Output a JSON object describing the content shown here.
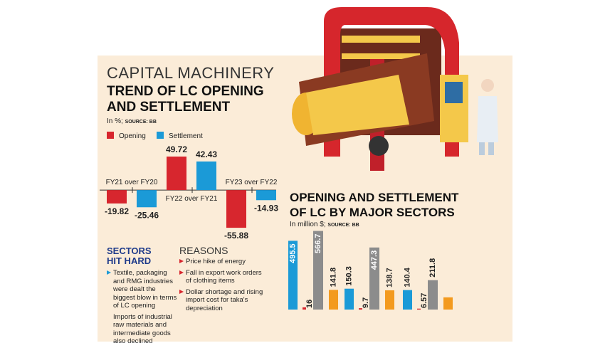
{
  "chart_data": [
    {
      "type": "bar",
      "kicker": "CAPITAL MACHINERY",
      "title": "TREND OF LC OPENING AND SETTLEMENT",
      "subtitle": "In %;",
      "source": "SOURCE: BB",
      "categories": [
        "FY21 over FY20",
        "FY22 over FY21",
        "FY23 over FY22"
      ],
      "series": [
        {
          "name": "Opening",
          "color": "#d7262e",
          "values": [
            -19.82,
            49.72,
            -55.88
          ]
        },
        {
          "name": "Settlement",
          "color": "#1b9ad7",
          "values": [
            -25.46,
            42.43,
            -14.93
          ]
        }
      ],
      "ylim": [
        -60,
        55
      ]
    },
    {
      "type": "bar",
      "title": "OPENING AND SETTLEMENT OF LC BY MAJOR SECTORS",
      "subtitle": "In million $;",
      "source": "SOURCE: BB",
      "series": [
        {
          "color": "#1b9ad7",
          "values": [
            495.5,
            150.3,
            140.4
          ]
        },
        {
          "color": "#d7262e",
          "values": [
            16,
            9.7,
            6.57
          ]
        },
        {
          "color": "#8c8c8c",
          "values": [
            566.7,
            447.3,
            211.8
          ]
        },
        {
          "color": "#f39a1e",
          "values": [
            141.8,
            138.7,
            88
          ],
          "value_labels": [
            "141.8",
            "138.7",
            null
          ]
        }
      ],
      "ylim": [
        0,
        600
      ]
    }
  ],
  "sectors_hit_hard": {
    "title": "SECTORS HIT HARD",
    "items": [
      "Textile, packaging and RMG industries were dealt the biggest blow in terms of LC opening",
      "Imports of industrial raw materials and intermediate goods also declined"
    ]
  },
  "reasons": {
    "title": "REASONS",
    "items": [
      "Price hike of energy",
      "Fall in export work orders of clothing items",
      "Dollar shortage and rising import cost for taka's depreciation"
    ]
  }
}
